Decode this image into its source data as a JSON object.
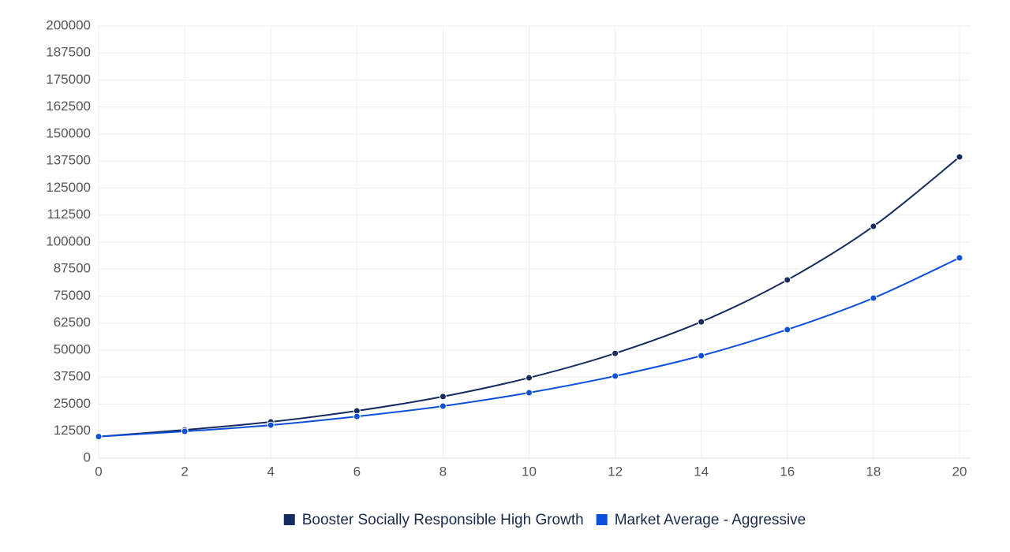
{
  "chart_data": {
    "type": "line",
    "x": [
      0,
      2,
      4,
      6,
      8,
      10,
      12,
      14,
      16,
      18,
      20
    ],
    "series": [
      {
        "name": "Booster Socially Responsible High Growth",
        "color": "#152a5e",
        "values": [
          10000,
          13100,
          16800,
          21900,
          28500,
          37200,
          48500,
          63100,
          82500,
          107300,
          139400
        ]
      },
      {
        "name": "Market Average - Aggressive",
        "color": "#0b4fdb",
        "values": [
          10000,
          12400,
          15300,
          19300,
          24100,
          30300,
          38000,
          47400,
          59500,
          74100,
          92700
        ]
      }
    ],
    "xlim": [
      0,
      20
    ],
    "xticks": [
      0,
      2,
      4,
      6,
      8,
      10,
      12,
      14,
      16,
      18,
      20
    ],
    "ylim": [
      0,
      200000
    ],
    "yticks": [
      0,
      12500,
      25000,
      37500,
      50000,
      62500,
      75000,
      87500,
      100000,
      112500,
      125000,
      137500,
      150000,
      162500,
      175000,
      187500,
      200000
    ],
    "grid": true,
    "legend": "bottom"
  }
}
